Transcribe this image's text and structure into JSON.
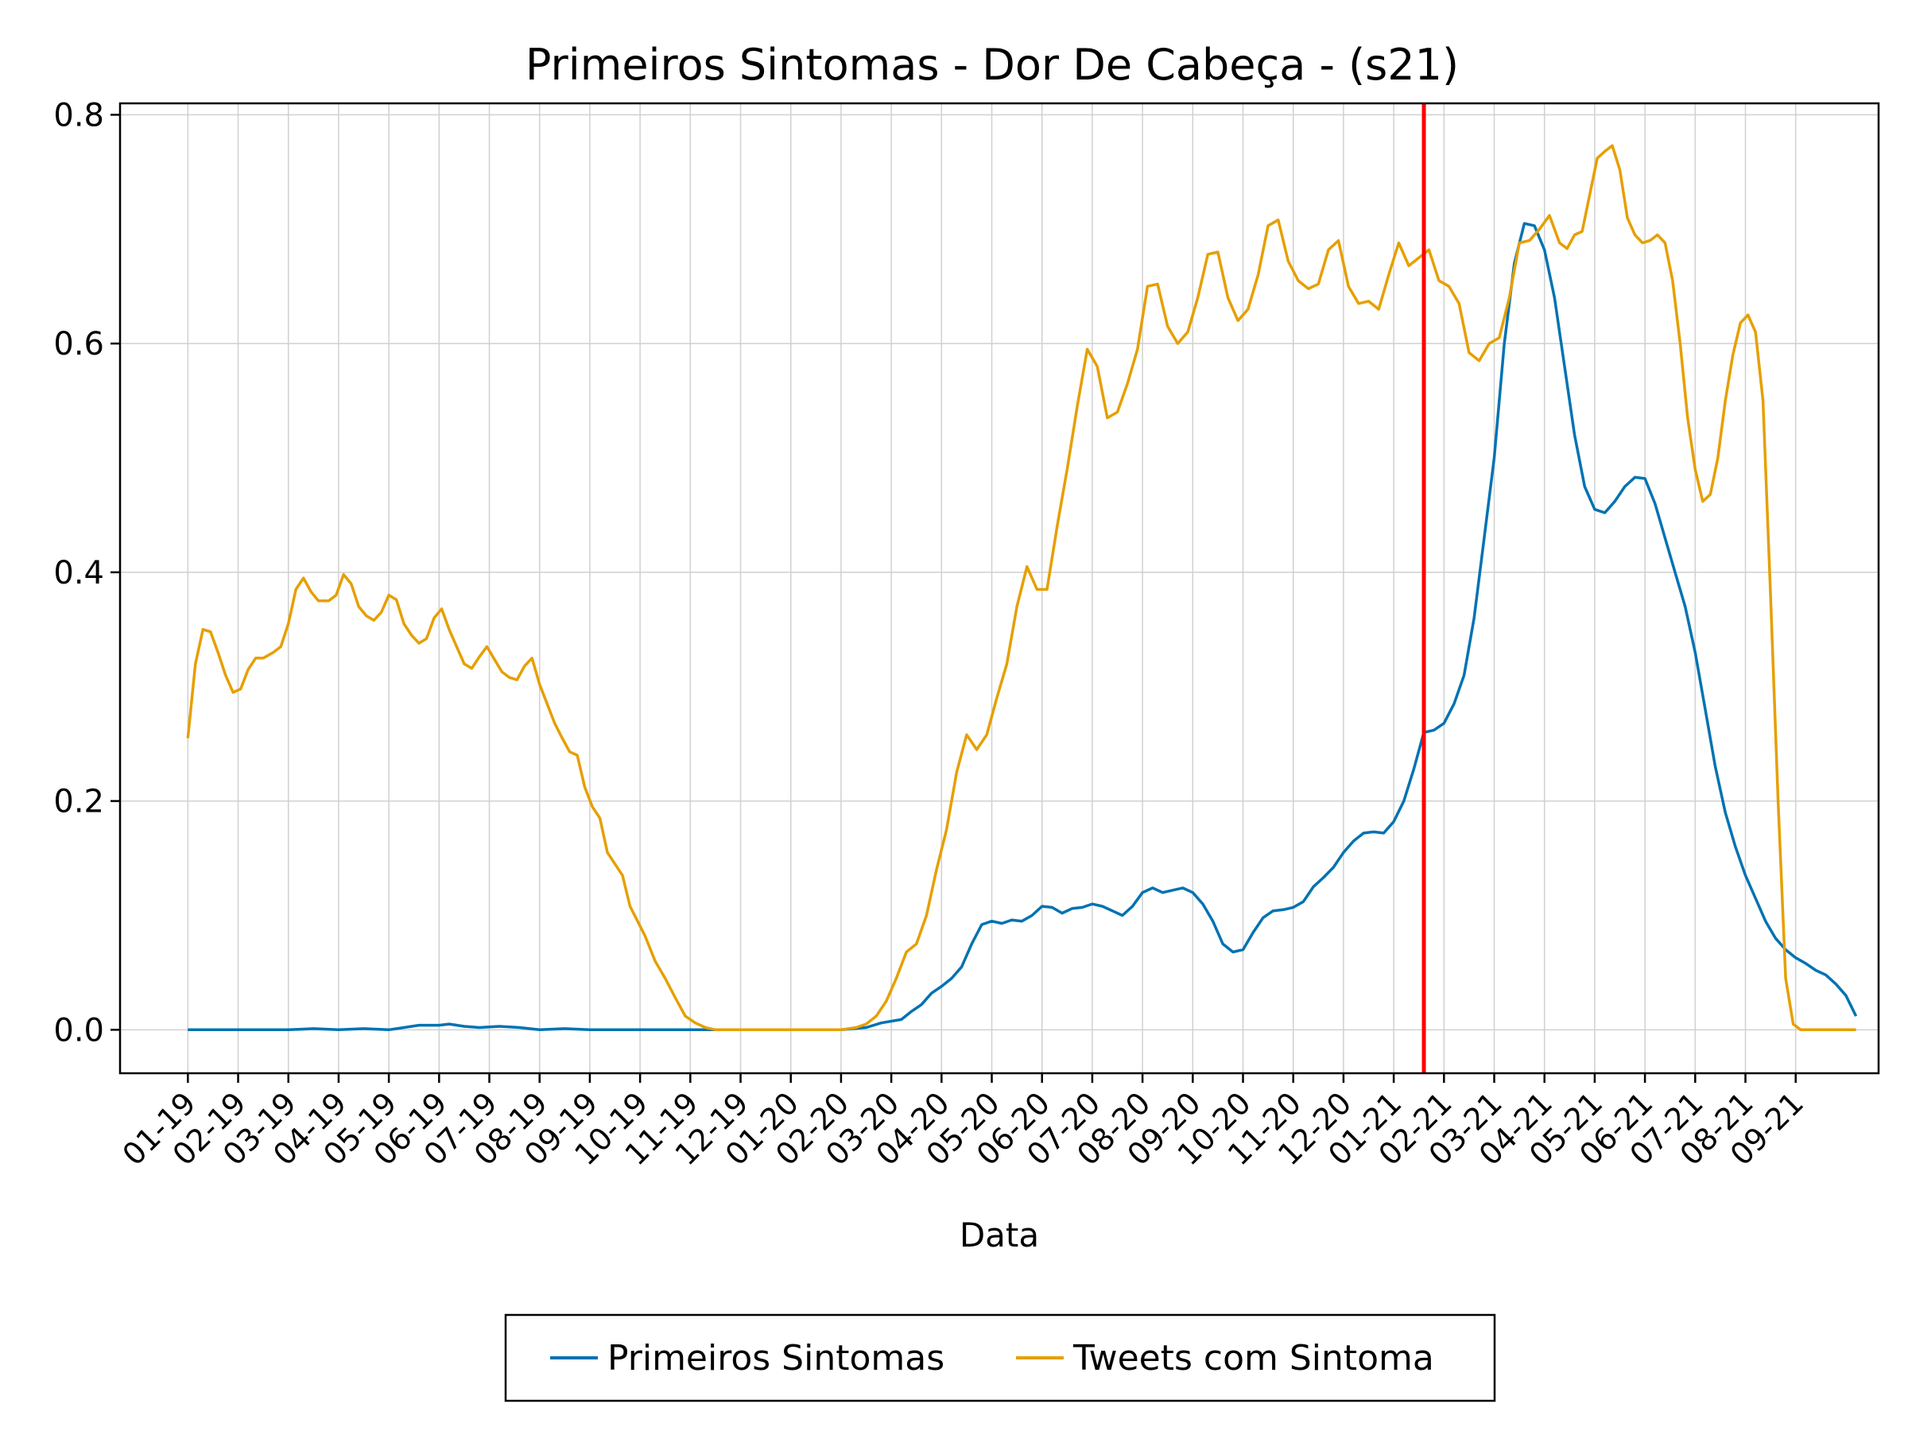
{
  "chart_data": {
    "type": "line",
    "title": "Primeiros Sintomas - Dor De Cabeça - (s21)",
    "xlabel": "Data",
    "ylabel": "",
    "ylim": [
      -0.038,
      0.81
    ],
    "yticks": [
      0.0,
      0.2,
      0.4,
      0.6,
      0.8
    ],
    "ytick_labels": [
      "0.0",
      "0.2",
      "0.4",
      "0.6",
      "0.8"
    ],
    "xlim": [
      -1.35,
      33.65
    ],
    "xticks": [
      0,
      1,
      2,
      3,
      4,
      5,
      6,
      7,
      8,
      9,
      10,
      11,
      12,
      13,
      14,
      15,
      16,
      17,
      18,
      19,
      20,
      21,
      22,
      23,
      24,
      25,
      26,
      27,
      28,
      29,
      30,
      31,
      32
    ],
    "xtick_labels": [
      "01-19",
      "02-19",
      "03-19",
      "04-19",
      "05-19",
      "06-19",
      "07-19",
      "08-19",
      "09-19",
      "10-19",
      "11-19",
      "12-19",
      "01-20",
      "02-20",
      "03-20",
      "04-20",
      "05-20",
      "06-20",
      "07-20",
      "08-20",
      "09-20",
      "10-20",
      "11-20",
      "12-20",
      "01-21",
      "02-21",
      "03-21",
      "04-21",
      "05-21",
      "06-21",
      "07-21",
      "08-21",
      "09-21"
    ],
    "grid": true,
    "legend_position": "bottom",
    "vline": {
      "x": 24.6,
      "color": "#ff0000"
    },
    "series": [
      {
        "name": "Primeiros Sintomas",
        "color": "#0072b2",
        "points": [
          [
            0,
            0.0
          ],
          [
            1,
            0.0
          ],
          [
            2,
            0.0
          ],
          [
            2.5,
            0.001
          ],
          [
            3,
            0.0
          ],
          [
            3.5,
            0.001
          ],
          [
            4,
            0.0
          ],
          [
            4.3,
            0.002
          ],
          [
            4.6,
            0.004
          ],
          [
            5,
            0.004
          ],
          [
            5.2,
            0.005
          ],
          [
            5.5,
            0.003
          ],
          [
            5.8,
            0.002
          ],
          [
            6.2,
            0.003
          ],
          [
            6.6,
            0.002
          ],
          [
            7,
            0.0
          ],
          [
            7.5,
            0.001
          ],
          [
            8,
            0.0
          ],
          [
            9,
            0.0
          ],
          [
            10,
            0.0
          ],
          [
            11,
            0.0
          ],
          [
            12,
            0.0
          ],
          [
            13,
            0.0
          ],
          [
            13.5,
            0.002
          ],
          [
            13.8,
            0.006
          ],
          [
            14.2,
            0.009
          ],
          [
            14.4,
            0.016
          ],
          [
            14.6,
            0.022
          ],
          [
            14.8,
            0.032
          ],
          [
            15.0,
            0.038
          ],
          [
            15.2,
            0.045
          ],
          [
            15.4,
            0.055
          ],
          [
            15.6,
            0.075
          ],
          [
            15.8,
            0.092
          ],
          [
            16.0,
            0.095
          ],
          [
            16.2,
            0.093
          ],
          [
            16.4,
            0.096
          ],
          [
            16.6,
            0.095
          ],
          [
            16.8,
            0.1
          ],
          [
            17.0,
            0.108
          ],
          [
            17.2,
            0.107
          ],
          [
            17.4,
            0.102
          ],
          [
            17.6,
            0.106
          ],
          [
            17.8,
            0.107
          ],
          [
            18.0,
            0.11
          ],
          [
            18.2,
            0.108
          ],
          [
            18.4,
            0.104
          ],
          [
            18.6,
            0.1
          ],
          [
            18.8,
            0.108
          ],
          [
            19.0,
            0.12
          ],
          [
            19.2,
            0.124
          ],
          [
            19.4,
            0.12
          ],
          [
            19.6,
            0.122
          ],
          [
            19.8,
            0.124
          ],
          [
            20.0,
            0.12
          ],
          [
            20.2,
            0.11
          ],
          [
            20.4,
            0.095
          ],
          [
            20.6,
            0.075
          ],
          [
            20.8,
            0.068
          ],
          [
            21.0,
            0.07
          ],
          [
            21.2,
            0.085
          ],
          [
            21.4,
            0.098
          ],
          [
            21.6,
            0.104
          ],
          [
            21.8,
            0.105
          ],
          [
            22.0,
            0.107
          ],
          [
            22.2,
            0.112
          ],
          [
            22.4,
            0.125
          ],
          [
            22.6,
            0.133
          ],
          [
            22.8,
            0.142
          ],
          [
            23.0,
            0.155
          ],
          [
            23.2,
            0.165
          ],
          [
            23.4,
            0.172
          ],
          [
            23.6,
            0.173
          ],
          [
            23.8,
            0.172
          ],
          [
            24.0,
            0.182
          ],
          [
            24.2,
            0.2
          ],
          [
            24.4,
            0.228
          ],
          [
            24.6,
            0.26
          ],
          [
            24.8,
            0.262
          ],
          [
            25.0,
            0.268
          ],
          [
            25.2,
            0.285
          ],
          [
            25.4,
            0.31
          ],
          [
            25.6,
            0.36
          ],
          [
            25.8,
            0.43
          ],
          [
            26.0,
            0.5
          ],
          [
            26.2,
            0.6
          ],
          [
            26.4,
            0.67
          ],
          [
            26.6,
            0.705
          ],
          [
            26.8,
            0.703
          ],
          [
            27.0,
            0.682
          ],
          [
            27.2,
            0.64
          ],
          [
            27.4,
            0.58
          ],
          [
            27.6,
            0.52
          ],
          [
            27.8,
            0.475
          ],
          [
            28.0,
            0.455
          ],
          [
            28.2,
            0.452
          ],
          [
            28.4,
            0.462
          ],
          [
            28.6,
            0.475
          ],
          [
            28.8,
            0.483
          ],
          [
            29.0,
            0.482
          ],
          [
            29.2,
            0.46
          ],
          [
            29.4,
            0.43
          ],
          [
            29.6,
            0.4
          ],
          [
            29.8,
            0.37
          ],
          [
            30.0,
            0.33
          ],
          [
            30.2,
            0.28
          ],
          [
            30.4,
            0.23
          ],
          [
            30.6,
            0.19
          ],
          [
            30.8,
            0.16
          ],
          [
            31.0,
            0.135
          ],
          [
            31.2,
            0.115
          ],
          [
            31.4,
            0.095
          ],
          [
            31.6,
            0.08
          ],
          [
            31.8,
            0.07
          ],
          [
            32.0,
            0.063
          ],
          [
            32.2,
            0.058
          ],
          [
            32.4,
            0.052
          ],
          [
            32.6,
            0.048
          ],
          [
            32.8,
            0.04
          ],
          [
            33.0,
            0.03
          ],
          [
            33.2,
            0.012
          ]
        ]
      },
      {
        "name": "Tweets com Sintoma",
        "color": "#e69f00",
        "points": [
          [
            0,
            0.255
          ],
          [
            0.15,
            0.32
          ],
          [
            0.3,
            0.35
          ],
          [
            0.45,
            0.348
          ],
          [
            0.6,
            0.33
          ],
          [
            0.75,
            0.31
          ],
          [
            0.9,
            0.295
          ],
          [
            1.05,
            0.298
          ],
          [
            1.2,
            0.315
          ],
          [
            1.35,
            0.325
          ],
          [
            1.5,
            0.325
          ],
          [
            1.7,
            0.33
          ],
          [
            1.85,
            0.335
          ],
          [
            2.0,
            0.355
          ],
          [
            2.15,
            0.385
          ],
          [
            2.3,
            0.395
          ],
          [
            2.45,
            0.383
          ],
          [
            2.6,
            0.375
          ],
          [
            2.8,
            0.375
          ],
          [
            2.95,
            0.38
          ],
          [
            3.1,
            0.398
          ],
          [
            3.25,
            0.39
          ],
          [
            3.4,
            0.37
          ],
          [
            3.55,
            0.362
          ],
          [
            3.7,
            0.358
          ],
          [
            3.85,
            0.365
          ],
          [
            4.0,
            0.38
          ],
          [
            4.15,
            0.376
          ],
          [
            4.3,
            0.355
          ],
          [
            4.45,
            0.345
          ],
          [
            4.6,
            0.338
          ],
          [
            4.75,
            0.342
          ],
          [
            4.9,
            0.36
          ],
          [
            5.05,
            0.368
          ],
          [
            5.2,
            0.35
          ],
          [
            5.35,
            0.335
          ],
          [
            5.5,
            0.32
          ],
          [
            5.65,
            0.316
          ],
          [
            5.8,
            0.326
          ],
          [
            5.95,
            0.335
          ],
          [
            6.1,
            0.324
          ],
          [
            6.25,
            0.313
          ],
          [
            6.4,
            0.308
          ],
          [
            6.55,
            0.306
          ],
          [
            6.7,
            0.318
          ],
          [
            6.85,
            0.325
          ],
          [
            7.0,
            0.302
          ],
          [
            7.15,
            0.285
          ],
          [
            7.3,
            0.268
          ],
          [
            7.45,
            0.255
          ],
          [
            7.6,
            0.243
          ],
          [
            7.75,
            0.24
          ],
          [
            7.9,
            0.212
          ],
          [
            8.05,
            0.195
          ],
          [
            8.2,
            0.185
          ],
          [
            8.35,
            0.155
          ],
          [
            8.5,
            0.145
          ],
          [
            8.65,
            0.135
          ],
          [
            8.8,
            0.108
          ],
          [
            8.95,
            0.095
          ],
          [
            9.1,
            0.082
          ],
          [
            9.3,
            0.06
          ],
          [
            9.5,
            0.045
          ],
          [
            9.7,
            0.028
          ],
          [
            9.9,
            0.012
          ],
          [
            10.1,
            0.006
          ],
          [
            10.3,
            0.002
          ],
          [
            10.5,
            0.0
          ],
          [
            11,
            0.0
          ],
          [
            12,
            0.0
          ],
          [
            13,
            0.0
          ],
          [
            13.3,
            0.002
          ],
          [
            13.5,
            0.005
          ],
          [
            13.7,
            0.012
          ],
          [
            13.9,
            0.025
          ],
          [
            14.1,
            0.045
          ],
          [
            14.3,
            0.068
          ],
          [
            14.5,
            0.075
          ],
          [
            14.7,
            0.1
          ],
          [
            14.9,
            0.14
          ],
          [
            15.1,
            0.175
          ],
          [
            15.3,
            0.225
          ],
          [
            15.5,
            0.258
          ],
          [
            15.7,
            0.245
          ],
          [
            15.9,
            0.258
          ],
          [
            16.1,
            0.29
          ],
          [
            16.3,
            0.32
          ],
          [
            16.5,
            0.37
          ],
          [
            16.7,
            0.405
          ],
          [
            16.9,
            0.385
          ],
          [
            17.1,
            0.385
          ],
          [
            17.3,
            0.44
          ],
          [
            17.5,
            0.49
          ],
          [
            17.7,
            0.545
          ],
          [
            17.9,
            0.595
          ],
          [
            18.1,
            0.58
          ],
          [
            18.3,
            0.535
          ],
          [
            18.5,
            0.54
          ],
          [
            18.7,
            0.565
          ],
          [
            18.9,
            0.595
          ],
          [
            19.1,
            0.65
          ],
          [
            19.3,
            0.652
          ],
          [
            19.5,
            0.615
          ],
          [
            19.7,
            0.6
          ],
          [
            19.9,
            0.61
          ],
          [
            20.1,
            0.64
          ],
          [
            20.3,
            0.678
          ],
          [
            20.5,
            0.68
          ],
          [
            20.7,
            0.64
          ],
          [
            20.9,
            0.62
          ],
          [
            21.1,
            0.63
          ],
          [
            21.3,
            0.66
          ],
          [
            21.5,
            0.703
          ],
          [
            21.7,
            0.708
          ],
          [
            21.9,
            0.672
          ],
          [
            22.1,
            0.655
          ],
          [
            22.3,
            0.648
          ],
          [
            22.5,
            0.652
          ],
          [
            22.7,
            0.682
          ],
          [
            22.9,
            0.69
          ],
          [
            23.1,
            0.65
          ],
          [
            23.3,
            0.635
          ],
          [
            23.5,
            0.637
          ],
          [
            23.7,
            0.63
          ],
          [
            23.9,
            0.66
          ],
          [
            24.1,
            0.688
          ],
          [
            24.3,
            0.668
          ],
          [
            24.5,
            0.675
          ],
          [
            24.7,
            0.682
          ],
          [
            24.9,
            0.655
          ],
          [
            25.1,
            0.65
          ],
          [
            25.3,
            0.635
          ],
          [
            25.5,
            0.592
          ],
          [
            25.7,
            0.585
          ],
          [
            25.9,
            0.6
          ],
          [
            26.1,
            0.605
          ],
          [
            26.3,
            0.64
          ],
          [
            26.5,
            0.688
          ],
          [
            26.7,
            0.69
          ],
          [
            26.9,
            0.7
          ],
          [
            27.1,
            0.712
          ],
          [
            27.3,
            0.688
          ],
          [
            27.45,
            0.683
          ],
          [
            27.6,
            0.695
          ],
          [
            27.75,
            0.698
          ],
          [
            27.9,
            0.73
          ],
          [
            28.05,
            0.762
          ],
          [
            28.2,
            0.768
          ],
          [
            28.35,
            0.773
          ],
          [
            28.5,
            0.752
          ],
          [
            28.65,
            0.71
          ],
          [
            28.8,
            0.695
          ],
          [
            28.95,
            0.688
          ],
          [
            29.1,
            0.69
          ],
          [
            29.25,
            0.695
          ],
          [
            29.4,
            0.688
          ],
          [
            29.55,
            0.655
          ],
          [
            29.7,
            0.6
          ],
          [
            29.85,
            0.535
          ],
          [
            30.0,
            0.49
          ],
          [
            30.15,
            0.462
          ],
          [
            30.3,
            0.468
          ],
          [
            30.45,
            0.5
          ],
          [
            30.6,
            0.55
          ],
          [
            30.75,
            0.59
          ],
          [
            30.9,
            0.618
          ],
          [
            31.05,
            0.625
          ],
          [
            31.2,
            0.61
          ],
          [
            31.35,
            0.55
          ],
          [
            31.5,
            0.38
          ],
          [
            31.65,
            0.2
          ],
          [
            31.8,
            0.045
          ],
          [
            31.95,
            0.005
          ],
          [
            32.1,
            0.0
          ],
          [
            33.2,
            0.0
          ]
        ]
      }
    ]
  }
}
